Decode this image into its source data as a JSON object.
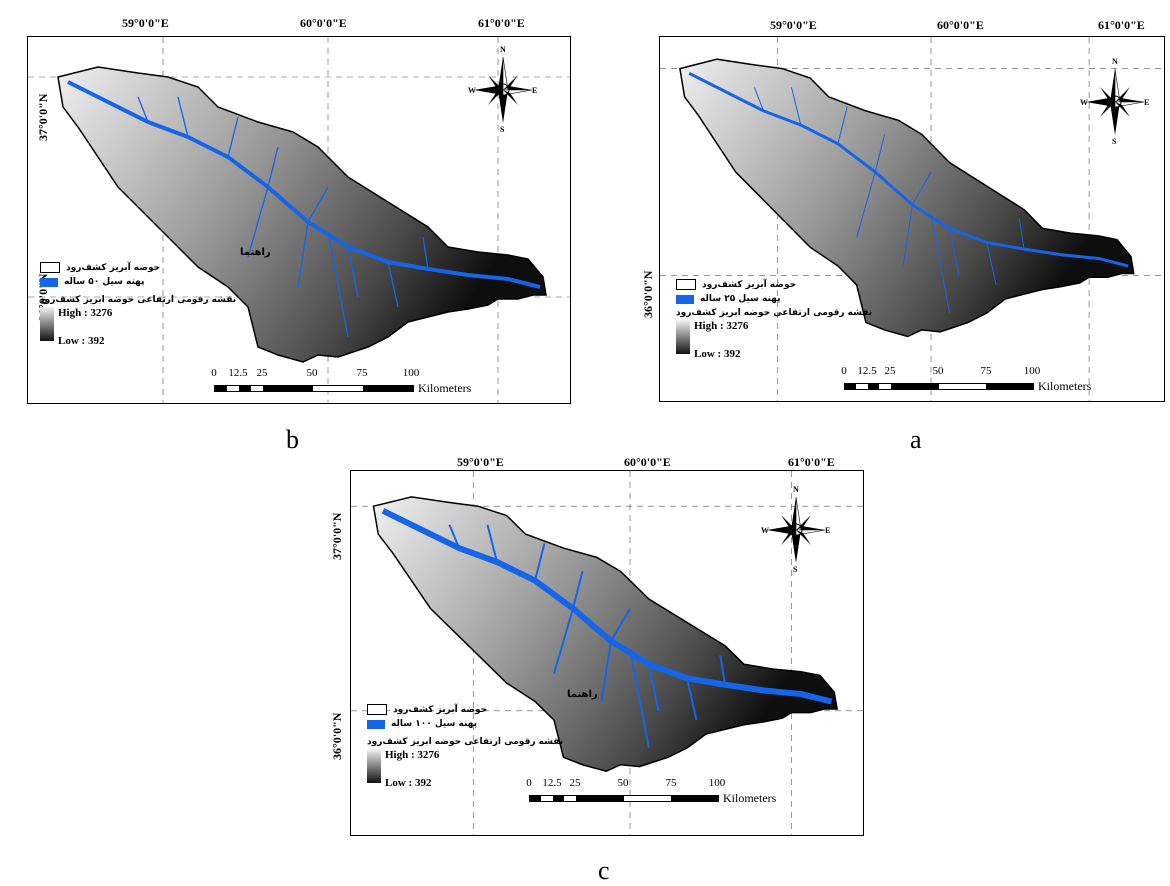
{
  "coords": {
    "lon": [
      "59°0'0\"E",
      "60°0'0\"E",
      "61°0'0\"E"
    ],
    "lat": [
      "37°0'0\"N",
      "36°0'0\"N"
    ]
  },
  "compass": {
    "n": "N",
    "s": "S",
    "e": "E",
    "w": "W"
  },
  "legend": {
    "title": "راهنما",
    "basin": "حوضه آبریز کشف‌رود",
    "dem_title": "نقشه رقومی ارتفاعی حوضه ابریز کشف‌رود",
    "high": "High : 3276",
    "low": "Low : 392"
  },
  "scale": {
    "ticks": [
      "0",
      "12.5",
      "25",
      "50",
      "75",
      "100"
    ],
    "unit": "Kilometers"
  },
  "panels": [
    {
      "id": "b",
      "label": "b",
      "flood": "پهنه سیل ۵۰ ساله"
    },
    {
      "id": "a",
      "label": "a",
      "flood": "پهنه سیل ۲۵ ساله"
    },
    {
      "id": "c",
      "label": "c",
      "flood": "پهنه سیل ۱۰۰ ساله"
    }
  ],
  "colors": {
    "flood": "#1565e8",
    "outline": "#000000",
    "dem_high": "#f4f4f4",
    "dem_low": "#111111"
  }
}
